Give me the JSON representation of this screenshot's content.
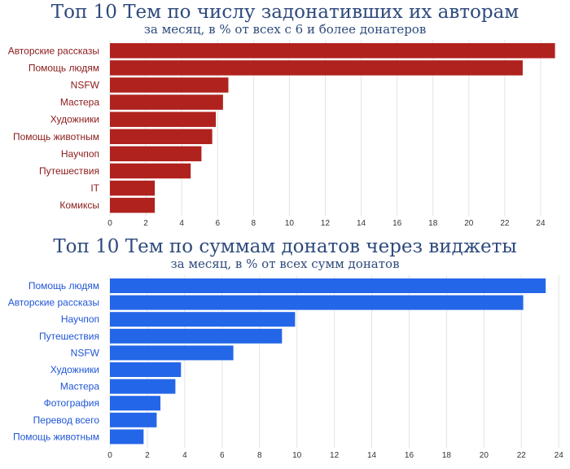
{
  "chart_data": [
    {
      "type": "bar",
      "orientation": "horizontal",
      "title": "Топ 10 Тем по числу задонативших их авторам",
      "subtitle": "за месяц, в % от всех с 6 и более донатеров",
      "categories": [
        "Авторские рассказы",
        "Помощь людям",
        "NSFW",
        "Мастера",
        "Художники",
        "Помощь животным",
        "Научпоп",
        "Путешествия",
        "IT",
        "Комиксы"
      ],
      "values": [
        24.8,
        23.0,
        6.6,
        6.3,
        5.9,
        5.7,
        5.1,
        4.5,
        2.5,
        2.5
      ],
      "xlim": [
        0,
        25
      ],
      "ticks": [
        "0",
        "2",
        "4",
        "6",
        "8",
        "10",
        "12",
        "14",
        "16",
        "18",
        "20",
        "22",
        "24"
      ],
      "grid": true,
      "bar_color": "#b0221e",
      "label_color": "#8b1a1a"
    },
    {
      "type": "bar",
      "orientation": "horizontal",
      "title": "Топ 10 Тем по суммам донатов через виджеты",
      "subtitle": "за месяц, в % от всех сумм донатов",
      "categories": [
        "Помощь людям",
        "Авторские рассказы",
        "Научпоп",
        "Путешествия",
        "NSFW",
        "Художники",
        "Мастера",
        "Фотография",
        "Перевод всего",
        "Помощь животным"
      ],
      "values": [
        23.3,
        22.1,
        9.9,
        9.2,
        6.6,
        3.8,
        3.5,
        2.7,
        2.5,
        1.8
      ],
      "xlim": [
        0,
        24.6
      ],
      "ticks": [
        "0",
        "2",
        "4",
        "6",
        "8",
        "10",
        "12",
        "14",
        "16",
        "18",
        "20",
        "22",
        "24"
      ],
      "grid": true,
      "bar_color": "#2466e8",
      "label_color": "#1f56d6"
    }
  ]
}
